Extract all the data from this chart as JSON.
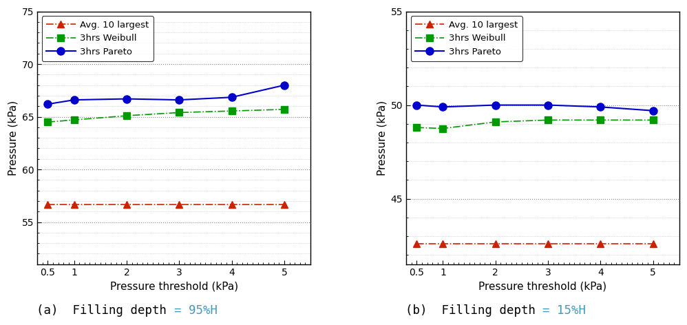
{
  "x": [
    0.5,
    1,
    2,
    3,
    4,
    5
  ],
  "chart_a": {
    "avg10": [
      56.7,
      56.7,
      56.7,
      56.7,
      56.7,
      56.7
    ],
    "weibull": [
      64.5,
      64.7,
      65.1,
      65.4,
      65.55,
      65.7
    ],
    "pareto": [
      66.2,
      66.6,
      66.7,
      66.6,
      66.85,
      68.0
    ],
    "ylim": [
      51,
      75
    ],
    "yticks": [
      55,
      60,
      65,
      70,
      75
    ],
    "ylabel": "Pressure (kPa)",
    "xlabel": "Pressure threshold (kPa)",
    "caption_black": "(a)  Filling depth ",
    "caption_cyan": "= 95%H"
  },
  "chart_b": {
    "avg10": [
      42.6,
      42.6,
      42.6,
      42.6,
      42.6,
      42.6
    ],
    "weibull": [
      48.8,
      48.75,
      49.1,
      49.2,
      49.2,
      49.2
    ],
    "pareto": [
      50.0,
      49.9,
      50.0,
      50.0,
      49.9,
      49.7
    ],
    "ylim": [
      41.5,
      55
    ],
    "yticks": [
      45,
      50,
      55
    ],
    "ylabel": "Pressure (kPa)",
    "xlabel": "Pressure threshold (kPa)",
    "caption_black": "(b)  Filling depth ",
    "caption_cyan": "= 15%H"
  },
  "legend_labels": [
    "Avg. 10 largest",
    "3hrs Weibull",
    "3hrs Pareto"
  ],
  "colors": {
    "avg10": "#cc2200",
    "weibull": "#009900",
    "pareto": "#0000cc"
  },
  "caption_color_black": "#000000",
  "caption_color_cyan": "#4499bb",
  "caption_fontsize": 12.5,
  "grid_color": "#888888",
  "minor_grid_color": "#bbbbbb"
}
